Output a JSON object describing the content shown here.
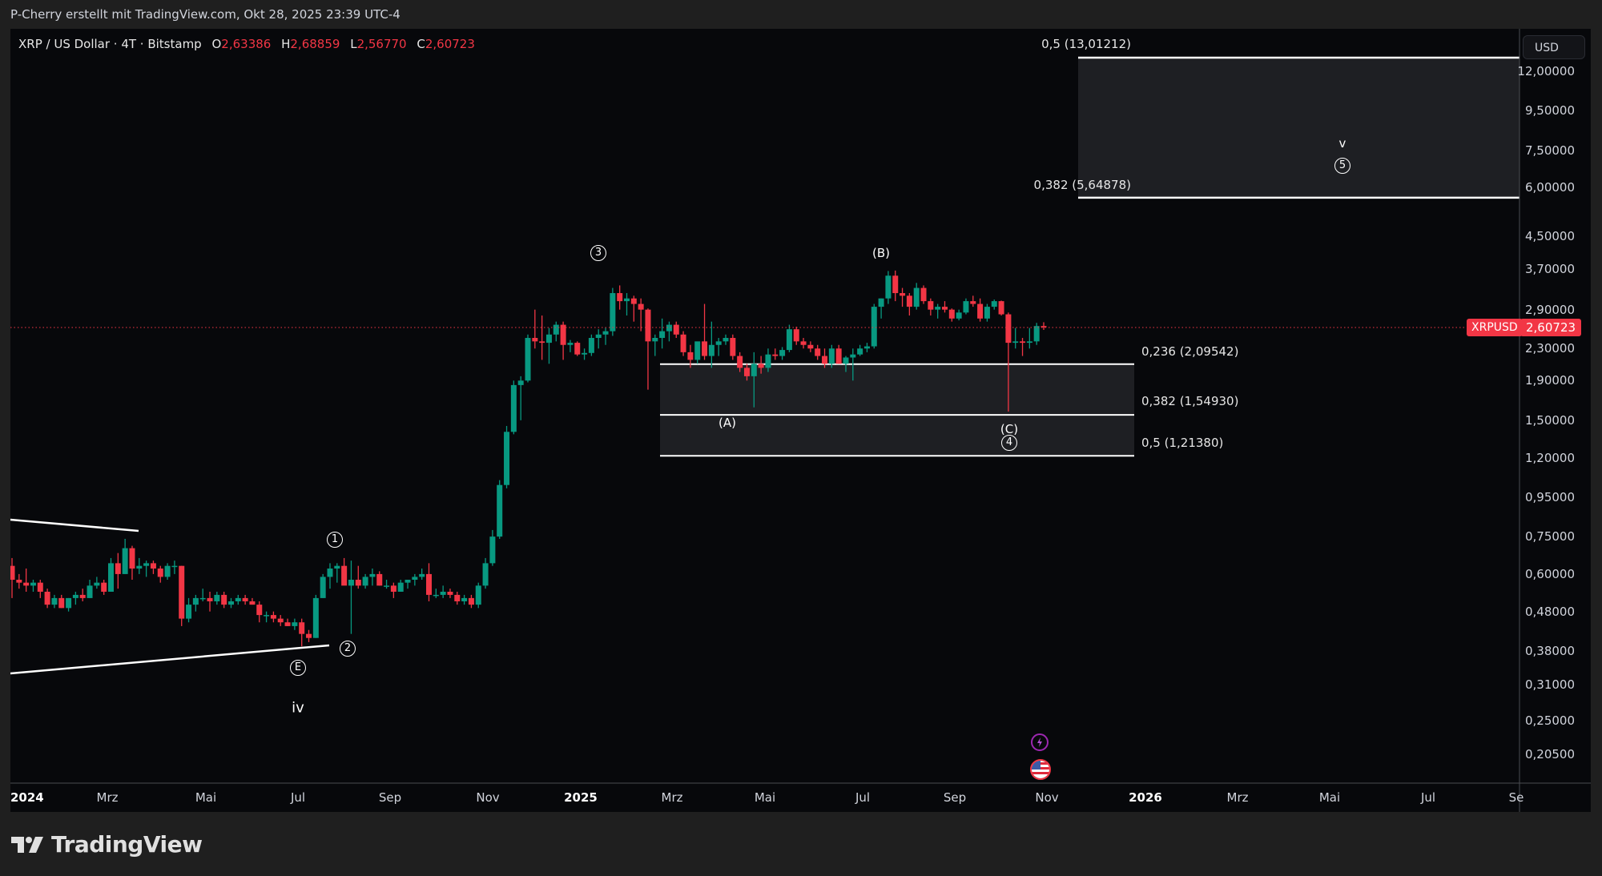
{
  "header": {
    "credit": "P-Cherry erstellt mit TradingView.com, Okt 28, 2025 23:39 UTC-4"
  },
  "legend": {
    "symbol": "XRP / US Dollar · 4T · Bitstamp",
    "open_label": "O",
    "open": "2,63386",
    "high_label": "H",
    "high": "2,68859",
    "low_label": "L",
    "low": "2,56770",
    "close_label": "C",
    "close": "2,60723"
  },
  "price_axis": {
    "currency_button": "USD",
    "ticks": [
      "12,00000",
      "9,50000",
      "7,50000",
      "6,00000",
      "4,50000",
      "3,70000",
      "2,90000",
      "2,30000",
      "1,90000",
      "1,50000",
      "1,20000",
      "0,95000",
      "0,75000",
      "0,60000",
      "0,48000",
      "0,38000",
      "0,31000",
      "0,25000",
      "0,20500"
    ],
    "last_price": "2,60723",
    "symbol_tag": "XRPUSD"
  },
  "time_axis": {
    "ticks": [
      "2024",
      "Mrz",
      "Mai",
      "Jul",
      "Sep",
      "Nov",
      "2025",
      "Mrz",
      "Mai",
      "Jul",
      "Sep",
      "Nov",
      "2026",
      "Mrz",
      "Mai",
      "Jul",
      "Se"
    ]
  },
  "fib_levels": {
    "upper_top": "0,5 (13,01212)",
    "upper_bottom": "0,382 (5,64878)",
    "lower_1": "0,236 (2,09542)",
    "lower_2": "0,382 (1,54930)",
    "lower_3": "0,5 (1,21380)"
  },
  "waves": {
    "w1": "1",
    "w2": "2",
    "w3": "3",
    "w4": "4",
    "w5": "5",
    "E": "E",
    "iv": "iv",
    "v": "v",
    "A": "(A)",
    "B": "(B)",
    "C": "(C)"
  },
  "branding": {
    "logo_text": "TradingView"
  },
  "colors": {
    "up": "#089981",
    "down": "#f23645",
    "background": "#07080b",
    "frame": "#1f1f1f",
    "fib_zone": "#1e1f23"
  },
  "chart_data": {
    "type": "candlestick",
    "title": "XRP / US Dollar · 4T · Bitstamp",
    "scale": "log",
    "ylim": [
      0.18,
      14.5
    ],
    "xlabel": "",
    "ylabel": "USD",
    "x_ticks": [
      "2024",
      "Mrz",
      "Mai",
      "Jul",
      "Sep",
      "Nov",
      "2025",
      "Mrz",
      "Mai",
      "Jul",
      "Sep",
      "Nov",
      "2026",
      "Mrz",
      "Mai",
      "Jul",
      "Se"
    ],
    "y_ticks": [
      12.0,
      9.5,
      7.5,
      6.0,
      4.5,
      3.7,
      2.9,
      2.3,
      1.9,
      1.5,
      1.2,
      0.95,
      0.75,
      0.6,
      0.48,
      0.38,
      0.31,
      0.25,
      0.205
    ],
    "last_close": 2.60723,
    "ohlc_approx": [
      [
        0.63,
        0.66,
        0.52,
        0.58
      ],
      [
        0.58,
        0.6,
        0.55,
        0.57
      ],
      [
        0.57,
        0.62,
        0.54,
        0.56
      ],
      [
        0.56,
        0.58,
        0.54,
        0.57
      ],
      [
        0.57,
        0.58,
        0.52,
        0.54
      ],
      [
        0.54,
        0.55,
        0.49,
        0.5
      ],
      [
        0.5,
        0.53,
        0.49,
        0.52
      ],
      [
        0.52,
        0.53,
        0.49,
        0.49
      ],
      [
        0.49,
        0.52,
        0.48,
        0.52
      ],
      [
        0.52,
        0.54,
        0.5,
        0.53
      ],
      [
        0.53,
        0.55,
        0.51,
        0.52
      ],
      [
        0.52,
        0.58,
        0.52,
        0.56
      ],
      [
        0.56,
        0.59,
        0.55,
        0.57
      ],
      [
        0.57,
        0.58,
        0.53,
        0.54
      ],
      [
        0.54,
        0.66,
        0.54,
        0.64
      ],
      [
        0.64,
        0.68,
        0.55,
        0.6
      ],
      [
        0.6,
        0.74,
        0.6,
        0.7
      ],
      [
        0.7,
        0.71,
        0.58,
        0.62
      ],
      [
        0.62,
        0.66,
        0.6,
        0.63
      ],
      [
        0.63,
        0.65,
        0.59,
        0.64
      ],
      [
        0.64,
        0.65,
        0.6,
        0.62
      ],
      [
        0.62,
        0.63,
        0.57,
        0.59
      ],
      [
        0.59,
        0.64,
        0.58,
        0.63
      ],
      [
        0.63,
        0.65,
        0.6,
        0.63
      ],
      [
        0.63,
        0.63,
        0.44,
        0.46
      ],
      [
        0.46,
        0.52,
        0.45,
        0.5
      ],
      [
        0.5,
        0.53,
        0.48,
        0.52
      ],
      [
        0.52,
        0.55,
        0.51,
        0.52
      ],
      [
        0.52,
        0.54,
        0.48,
        0.51
      ],
      [
        0.51,
        0.54,
        0.5,
        0.53
      ],
      [
        0.53,
        0.54,
        0.49,
        0.5
      ],
      [
        0.5,
        0.52,
        0.49,
        0.51
      ],
      [
        0.51,
        0.53,
        0.5,
        0.52
      ],
      [
        0.52,
        0.53,
        0.5,
        0.51
      ],
      [
        0.51,
        0.52,
        0.5,
        0.5
      ],
      [
        0.5,
        0.51,
        0.45,
        0.47
      ],
      [
        0.47,
        0.48,
        0.45,
        0.47
      ],
      [
        0.47,
        0.48,
        0.45,
        0.46
      ],
      [
        0.46,
        0.47,
        0.44,
        0.45
      ],
      [
        0.45,
        0.46,
        0.44,
        0.44
      ],
      [
        0.44,
        0.46,
        0.43,
        0.45
      ],
      [
        0.45,
        0.46,
        0.39,
        0.42
      ],
      [
        0.42,
        0.43,
        0.4,
        0.41
      ],
      [
        0.41,
        0.53,
        0.41,
        0.52
      ],
      [
        0.52,
        0.6,
        0.52,
        0.59
      ],
      [
        0.59,
        0.64,
        0.55,
        0.62
      ],
      [
        0.62,
        0.64,
        0.57,
        0.63
      ],
      [
        0.63,
        0.66,
        0.58,
        0.56
      ],
      [
        0.56,
        0.65,
        0.42,
        0.58
      ],
      [
        0.58,
        0.63,
        0.55,
        0.56
      ],
      [
        0.56,
        0.6,
        0.55,
        0.59
      ],
      [
        0.59,
        0.62,
        0.56,
        0.6
      ],
      [
        0.6,
        0.61,
        0.56,
        0.56
      ],
      [
        0.56,
        0.58,
        0.55,
        0.56
      ],
      [
        0.56,
        0.57,
        0.52,
        0.54
      ],
      [
        0.54,
        0.58,
        0.54,
        0.57
      ],
      [
        0.57,
        0.58,
        0.55,
        0.58
      ],
      [
        0.58,
        0.6,
        0.56,
        0.59
      ],
      [
        0.59,
        0.62,
        0.58,
        0.6
      ],
      [
        0.6,
        0.64,
        0.51,
        0.53
      ],
      [
        0.53,
        0.55,
        0.52,
        0.53
      ],
      [
        0.53,
        0.56,
        0.52,
        0.54
      ],
      [
        0.54,
        0.55,
        0.52,
        0.53
      ],
      [
        0.53,
        0.54,
        0.5,
        0.51
      ],
      [
        0.51,
        0.53,
        0.5,
        0.52
      ],
      [
        0.52,
        0.53,
        0.49,
        0.5
      ],
      [
        0.5,
        0.57,
        0.49,
        0.56
      ],
      [
        0.56,
        0.66,
        0.55,
        0.64
      ],
      [
        0.64,
        0.78,
        0.63,
        0.75
      ],
      [
        0.75,
        1.05,
        0.74,
        1.02
      ],
      [
        1.02,
        1.45,
        1.0,
        1.4
      ],
      [
        1.4,
        1.9,
        1.38,
        1.85
      ],
      [
        1.85,
        1.95,
        1.5,
        1.9
      ],
      [
        1.9,
        2.5,
        1.88,
        2.45
      ],
      [
        2.45,
        2.9,
        2.3,
        2.4
      ],
      [
        2.4,
        2.8,
        2.15,
        2.38
      ],
      [
        2.38,
        2.6,
        2.1,
        2.5
      ],
      [
        2.5,
        2.7,
        2.4,
        2.65
      ],
      [
        2.65,
        2.7,
        2.15,
        2.35
      ],
      [
        2.35,
        2.42,
        2.25,
        2.38
      ],
      [
        2.38,
        2.4,
        2.2,
        2.22
      ],
      [
        2.22,
        2.3,
        2.15,
        2.24
      ],
      [
        2.24,
        2.5,
        2.2,
        2.45
      ],
      [
        2.45,
        2.58,
        2.3,
        2.5
      ],
      [
        2.5,
        2.6,
        2.35,
        2.55
      ],
      [
        2.55,
        3.3,
        2.48,
        3.2
      ],
      [
        3.2,
        3.35,
        2.9,
        3.05
      ],
      [
        3.05,
        3.2,
        2.8,
        3.1
      ],
      [
        3.1,
        3.15,
        2.7,
        3.0
      ],
      [
        3.0,
        3.1,
        2.55,
        2.9
      ],
      [
        2.9,
        2.92,
        1.8,
        2.4
      ],
      [
        2.4,
        2.5,
        2.2,
        2.45
      ],
      [
        2.45,
        2.75,
        2.3,
        2.55
      ],
      [
        2.55,
        2.7,
        2.4,
        2.65
      ],
      [
        2.65,
        2.7,
        2.45,
        2.5
      ],
      [
        2.5,
        2.55,
        2.2,
        2.25
      ],
      [
        2.25,
        2.35,
        2.05,
        2.15
      ],
      [
        2.15,
        2.3,
        2.1,
        2.4
      ],
      [
        2.4,
        3.0,
        2.15,
        2.2
      ],
      [
        2.2,
        2.7,
        2.05,
        2.35
      ],
      [
        2.35,
        2.45,
        2.2,
        2.4
      ],
      [
        2.4,
        2.5,
        2.35,
        2.45
      ],
      [
        2.45,
        2.5,
        2.15,
        2.2
      ],
      [
        2.2,
        2.25,
        2.0,
        2.05
      ],
      [
        2.05,
        2.1,
        1.9,
        1.95
      ],
      [
        1.95,
        2.25,
        1.62,
        2.1
      ],
      [
        2.1,
        2.2,
        1.98,
        2.05
      ],
      [
        2.05,
        2.3,
        2.0,
        2.22
      ],
      [
        2.22,
        2.3,
        2.15,
        2.2
      ],
      [
        2.2,
        2.32,
        2.15,
        2.28
      ],
      [
        2.28,
        2.65,
        2.25,
        2.58
      ],
      [
        2.58,
        2.62,
        2.35,
        2.4
      ],
      [
        2.4,
        2.45,
        2.3,
        2.35
      ],
      [
        2.35,
        2.4,
        2.25,
        2.3
      ],
      [
        2.3,
        2.35,
        2.15,
        2.2
      ],
      [
        2.2,
        2.3,
        2.05,
        2.1
      ],
      [
        2.1,
        2.35,
        2.05,
        2.3
      ],
      [
        2.3,
        2.35,
        2.1,
        2.1
      ],
      [
        2.1,
        2.2,
        2.0,
        2.18
      ],
      [
        2.18,
        2.3,
        1.9,
        2.22
      ],
      [
        2.22,
        2.35,
        2.2,
        2.3
      ],
      [
        2.3,
        2.38,
        2.25,
        2.33
      ],
      [
        2.33,
        3.0,
        2.3,
        2.95
      ],
      [
        2.95,
        3.1,
        2.75,
        3.1
      ],
      [
        3.1,
        3.65,
        3.0,
        3.55
      ],
      [
        3.55,
        3.66,
        3.05,
        3.2
      ],
      [
        3.2,
        3.3,
        2.95,
        3.15
      ],
      [
        3.15,
        3.2,
        2.8,
        2.95
      ],
      [
        2.95,
        3.4,
        2.9,
        3.3
      ],
      [
        3.3,
        3.35,
        3.0,
        3.05
      ],
      [
        3.05,
        3.1,
        2.8,
        2.9
      ],
      [
        2.9,
        3.0,
        2.75,
        2.95
      ],
      [
        2.95,
        3.05,
        2.85,
        2.9
      ],
      [
        2.9,
        2.92,
        2.7,
        2.75
      ],
      [
        2.75,
        2.9,
        2.72,
        2.85
      ],
      [
        2.85,
        3.1,
        2.82,
        3.05
      ],
      [
        3.05,
        3.15,
        2.95,
        3.0
      ],
      [
        3.0,
        3.1,
        2.7,
        2.75
      ],
      [
        2.75,
        3.0,
        2.7,
        2.95
      ],
      [
        2.95,
        3.08,
        2.9,
        3.05
      ],
      [
        3.05,
        3.06,
        2.8,
        2.82
      ],
      [
        2.82,
        2.85,
        1.58,
        2.38
      ],
      [
        2.38,
        2.6,
        2.3,
        2.4
      ],
      [
        2.4,
        2.45,
        2.2,
        2.38
      ],
      [
        2.38,
        2.6,
        2.3,
        2.4
      ],
      [
        2.4,
        2.68,
        2.35,
        2.63
      ],
      [
        2.63,
        2.69,
        2.57,
        2.61
      ]
    ],
    "annotations": [
      {
        "label": "iv",
        "type": "wave"
      },
      {
        "label": "E",
        "type": "wave-circled"
      },
      {
        "label": "1",
        "type": "wave-circled"
      },
      {
        "label": "2",
        "type": "wave-circled"
      },
      {
        "label": "3",
        "type": "wave-circled"
      },
      {
        "label": "(A)",
        "type": "wave"
      },
      {
        "label": "(B)",
        "type": "wave"
      },
      {
        "label": "(C)",
        "type": "wave"
      },
      {
        "label": "4",
        "type": "wave-circled"
      },
      {
        "label": "v",
        "type": "wave"
      },
      {
        "label": "5",
        "type": "wave-circled"
      }
    ],
    "fib_zones": [
      {
        "levels": [
          {
            "ratio": 0.5,
            "price": 13.01212
          },
          {
            "ratio": 0.382,
            "price": 5.64878
          }
        ]
      },
      {
        "levels": [
          {
            "ratio": 0.236,
            "price": 2.09542
          },
          {
            "ratio": 0.382,
            "price": 1.5493
          },
          {
            "ratio": 0.5,
            "price": 1.2138
          }
        ]
      }
    ]
  }
}
